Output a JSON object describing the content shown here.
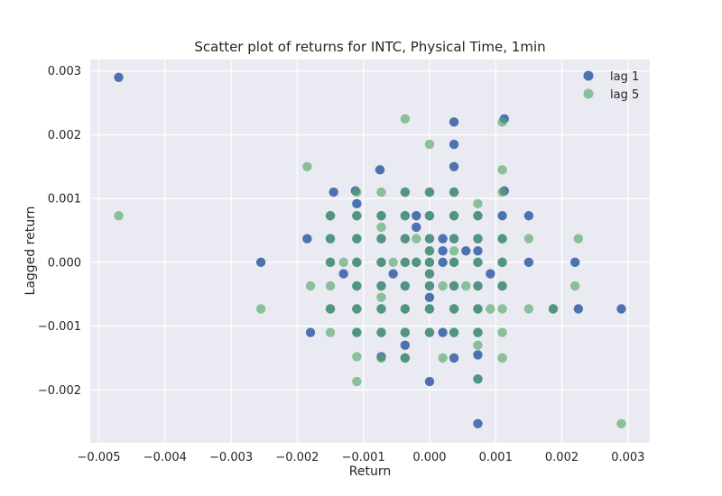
{
  "chart_data": {
    "type": "scatter",
    "title": "Scatter plot of returns for INTC, Physical Time, 1min",
    "xlabel": "Return",
    "ylabel": "Lagged return",
    "xlim": [
      -0.00513,
      0.00333
    ],
    "ylim": [
      -0.00283,
      0.00318
    ],
    "xticks": [
      -0.005,
      -0.004,
      -0.003,
      -0.002,
      -0.001,
      0.0,
      0.001,
      0.002,
      0.003
    ],
    "xtick_labels": [
      "−0.005",
      "−0.004",
      "−0.003",
      "−0.002",
      "−0.001",
      "0.000",
      "0.001",
      "0.002",
      "0.003"
    ],
    "yticks": [
      -0.002,
      -0.001,
      0.0,
      0.001,
      0.002,
      0.003
    ],
    "ytick_labels": [
      "−0.002",
      "−0.001",
      "0.000",
      "0.001",
      "0.002",
      "0.003"
    ],
    "grid": true,
    "legend_position": "top-right",
    "colors": {
      "background": "#eaeaf2",
      "grid": "#ffffff",
      "lag1": "#4c72b0",
      "lag5": "#55a868"
    },
    "series": [
      {
        "name": "lag 1",
        "points": [
          [
            -0.0047,
            0.0029
          ],
          [
            -0.00255,
            0.0
          ],
          [
            -0.00185,
            0.00037
          ],
          [
            -0.0018,
            -0.0011
          ],
          [
            -0.0015,
            0.00073
          ],
          [
            -0.0015,
            0.00037
          ],
          [
            -0.0015,
            0.0
          ],
          [
            -0.0015,
            -0.00073
          ],
          [
            -0.00145,
            0.0011
          ],
          [
            -0.0013,
            -0.00018
          ],
          [
            -0.00112,
            0.00112
          ],
          [
            -0.0011,
            0.00092
          ],
          [
            -0.0011,
            0.00073
          ],
          [
            -0.0011,
            0.00037
          ],
          [
            -0.0011,
            0.0
          ],
          [
            -0.0011,
            -0.00037
          ],
          [
            -0.0011,
            -0.00073
          ],
          [
            -0.0011,
            -0.0011
          ],
          [
            -0.00075,
            0.00145
          ],
          [
            -0.00073,
            0.00073
          ],
          [
            -0.00073,
            0.00037
          ],
          [
            -0.00073,
            0.0
          ],
          [
            -0.00073,
            -0.00037
          ],
          [
            -0.00073,
            -0.00073
          ],
          [
            -0.00073,
            -0.0011
          ],
          [
            -0.00073,
            -0.00148
          ],
          [
            -0.00055,
            -0.00018
          ],
          [
            -0.00037,
            0.0011
          ],
          [
            -0.00037,
            0.00073
          ],
          [
            -0.00037,
            0.00037
          ],
          [
            -0.00037,
            0.0
          ],
          [
            -0.00037,
            -0.00037
          ],
          [
            -0.00037,
            -0.00073
          ],
          [
            -0.00037,
            -0.0011
          ],
          [
            -0.00037,
            -0.0013
          ],
          [
            -0.00037,
            -0.0015
          ],
          [
            -0.0002,
            0.00073
          ],
          [
            -0.0002,
            0.00055
          ],
          [
            -0.0002,
            0.0
          ],
          [
            0.0,
            0.0011
          ],
          [
            0.0,
            0.00073
          ],
          [
            0.0,
            0.00037
          ],
          [
            0.0,
            0.00018
          ],
          [
            0.0,
            0.0
          ],
          [
            0.0,
            -0.00018
          ],
          [
            0.0,
            -0.00037
          ],
          [
            0.0,
            -0.00055
          ],
          [
            0.0,
            -0.00073
          ],
          [
            0.0,
            -0.0011
          ],
          [
            0.0,
            -0.00187
          ],
          [
            0.0002,
            0.00037
          ],
          [
            0.0002,
            0.00018
          ],
          [
            0.0002,
            0.0
          ],
          [
            0.0002,
            -0.0011
          ],
          [
            0.00037,
            0.0022
          ],
          [
            0.00037,
            0.00185
          ],
          [
            0.00037,
            0.0015
          ],
          [
            0.00037,
            0.0011
          ],
          [
            0.00037,
            0.00073
          ],
          [
            0.00037,
            0.00037
          ],
          [
            0.00037,
            0.0
          ],
          [
            0.00037,
            -0.00037
          ],
          [
            0.00037,
            -0.00073
          ],
          [
            0.00037,
            -0.0011
          ],
          [
            0.00037,
            -0.0015
          ],
          [
            0.00055,
            0.00018
          ],
          [
            0.00073,
            0.00073
          ],
          [
            0.00073,
            0.00037
          ],
          [
            0.00073,
            0.00018
          ],
          [
            0.00073,
            0.0
          ],
          [
            0.00073,
            -0.00037
          ],
          [
            0.00073,
            -0.00073
          ],
          [
            0.00073,
            -0.0011
          ],
          [
            0.00073,
            -0.00145
          ],
          [
            0.00073,
            -0.00183
          ],
          [
            0.00073,
            -0.00253
          ],
          [
            0.00092,
            -0.00018
          ],
          [
            0.0011,
            0.00073
          ],
          [
            0.00113,
            0.00225
          ],
          [
            0.00113,
            0.00112
          ],
          [
            0.0011,
            0.00037
          ],
          [
            0.0011,
            0.0
          ],
          [
            0.0011,
            -0.00037
          ],
          [
            0.0015,
            0.00073
          ],
          [
            0.0015,
            0.0
          ],
          [
            0.00187,
            -0.00073
          ],
          [
            0.0022,
            0.0
          ],
          [
            0.00225,
            -0.00073
          ],
          [
            0.0029,
            -0.00073
          ]
        ]
      },
      {
        "name": "lag 5",
        "points": [
          [
            -0.0047,
            0.00073
          ],
          [
            -0.00255,
            -0.00073
          ],
          [
            -0.00185,
            0.0015
          ],
          [
            -0.0018,
            -0.00037
          ],
          [
            -0.0015,
            0.00073
          ],
          [
            -0.0015,
            0.00037
          ],
          [
            -0.0015,
            0.0
          ],
          [
            -0.0015,
            -0.00037
          ],
          [
            -0.0015,
            -0.00073
          ],
          [
            -0.0015,
            -0.0011
          ],
          [
            -0.0013,
            0.0
          ],
          [
            -0.0011,
            0.0011
          ],
          [
            -0.0011,
            0.00073
          ],
          [
            -0.0011,
            0.00037
          ],
          [
            -0.0011,
            0.0
          ],
          [
            -0.0011,
            -0.00037
          ],
          [
            -0.0011,
            -0.00073
          ],
          [
            -0.0011,
            -0.0011
          ],
          [
            -0.0011,
            -0.00148
          ],
          [
            -0.0011,
            -0.00187
          ],
          [
            -0.00073,
            0.0011
          ],
          [
            -0.00073,
            0.00073
          ],
          [
            -0.00073,
            0.00055
          ],
          [
            -0.00073,
            0.00037
          ],
          [
            -0.00073,
            0.0
          ],
          [
            -0.00073,
            -0.00037
          ],
          [
            -0.00073,
            -0.00055
          ],
          [
            -0.00073,
            -0.00073
          ],
          [
            -0.00073,
            -0.0011
          ],
          [
            -0.00073,
            -0.0015
          ],
          [
            -0.00055,
            0.0
          ],
          [
            -0.00037,
            0.00225
          ],
          [
            -0.00037,
            0.0011
          ],
          [
            -0.00037,
            0.00073
          ],
          [
            -0.00037,
            0.00037
          ],
          [
            -0.00037,
            0.0
          ],
          [
            -0.00037,
            -0.00037
          ],
          [
            -0.00037,
            -0.00073
          ],
          [
            -0.00037,
            -0.0011
          ],
          [
            -0.00037,
            -0.0015
          ],
          [
            -0.0002,
            0.00037
          ],
          [
            -0.0002,
            0.0
          ],
          [
            0.0,
            0.00185
          ],
          [
            0.0,
            0.0011
          ],
          [
            0.0,
            0.00073
          ],
          [
            0.0,
            0.00037
          ],
          [
            0.0,
            0.00018
          ],
          [
            0.0,
            0.0
          ],
          [
            0.0,
            -0.00018
          ],
          [
            0.0,
            -0.00037
          ],
          [
            0.0,
            -0.00073
          ],
          [
            0.0,
            -0.0011
          ],
          [
            0.0002,
            -0.00037
          ],
          [
            0.0002,
            -0.0015
          ],
          [
            0.00037,
            0.0011
          ],
          [
            0.00037,
            0.00073
          ],
          [
            0.00037,
            0.00037
          ],
          [
            0.00037,
            0.00018
          ],
          [
            0.00037,
            0.0
          ],
          [
            0.00037,
            -0.00037
          ],
          [
            0.00037,
            -0.00073
          ],
          [
            0.00037,
            -0.0011
          ],
          [
            0.00055,
            -0.00037
          ],
          [
            0.00073,
            0.00092
          ],
          [
            0.00073,
            0.00073
          ],
          [
            0.00073,
            0.00037
          ],
          [
            0.00073,
            0.0
          ],
          [
            0.00073,
            -0.00037
          ],
          [
            0.00073,
            -0.00073
          ],
          [
            0.00073,
            -0.0011
          ],
          [
            0.00073,
            -0.0013
          ],
          [
            0.00073,
            -0.00183
          ],
          [
            0.00092,
            -0.00073
          ],
          [
            0.0011,
            0.0022
          ],
          [
            0.0011,
            0.00145
          ],
          [
            0.0011,
            0.0011
          ],
          [
            0.0011,
            0.00037
          ],
          [
            0.0011,
            0.0
          ],
          [
            0.0011,
            -0.00037
          ],
          [
            0.0011,
            -0.00073
          ],
          [
            0.0011,
            -0.0011
          ],
          [
            0.0011,
            -0.0015
          ],
          [
            0.0015,
            0.00037
          ],
          [
            0.0015,
            -0.00073
          ],
          [
            0.00187,
            -0.00073
          ],
          [
            0.0022,
            -0.00037
          ],
          [
            0.00225,
            0.00037
          ],
          [
            0.0029,
            -0.00253
          ]
        ]
      }
    ]
  }
}
